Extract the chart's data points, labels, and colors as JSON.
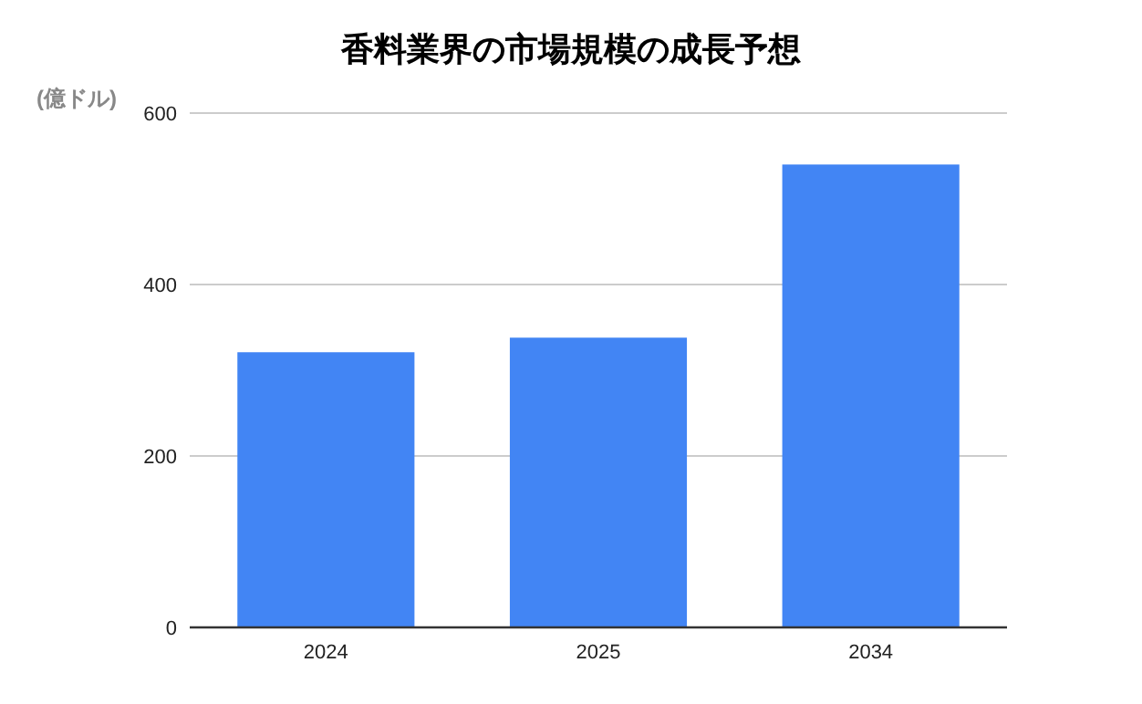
{
  "chart_data": {
    "type": "bar",
    "title": "香料業界の市場規模の成長予想",
    "ylabel": "(億ドル)",
    "categories": [
      "2024",
      "2025",
      "2034"
    ],
    "series": [
      {
        "color": "#4285f4",
        "values": [
          321,
          338,
          540
        ]
      }
    ],
    "ylim": [
      0,
      600
    ],
    "yticks": [
      0,
      200,
      400,
      600
    ],
    "grid": "y"
  }
}
